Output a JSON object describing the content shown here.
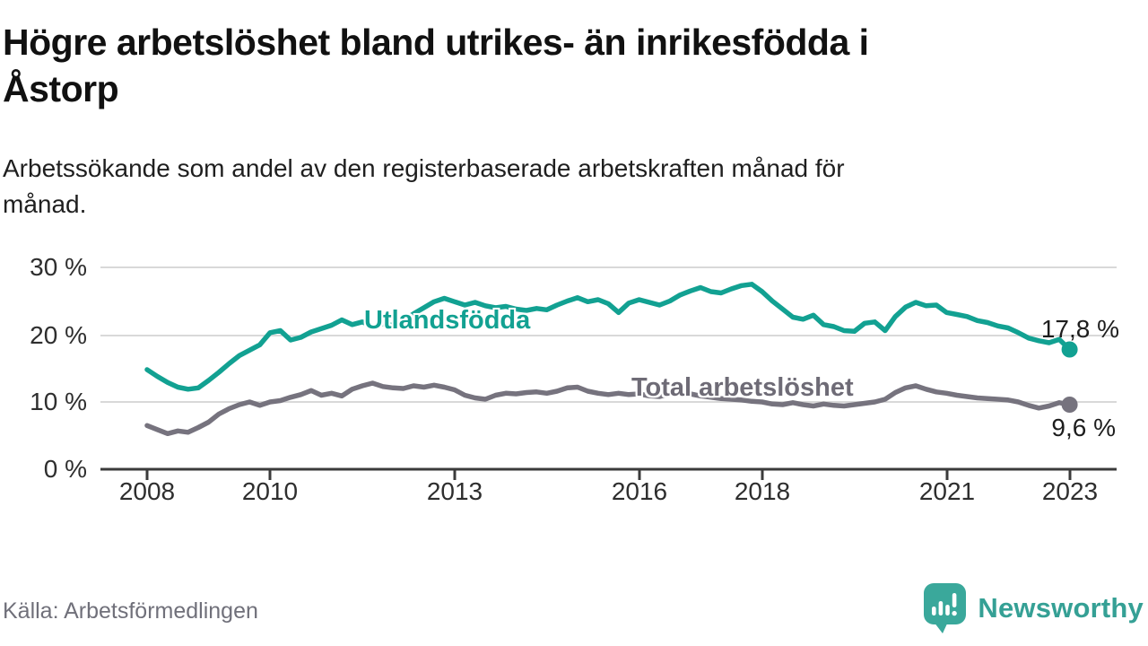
{
  "header": {
    "title": "Högre arbetslöshet bland utrikes- än inrikesfödda i Åstorp",
    "title_lines": [
      "Högre arbetslöshet bland utrikes- än inrikesfödda i",
      "Åstorp"
    ],
    "subtitle": "Arbetssökande som andel av den registerbaserade arbetskraften månad för månad.",
    "subtitle_lines": [
      "Arbetssökande som andel av den registerbaserade arbetskraften månad för",
      "månad."
    ]
  },
  "footer": {
    "source": "Källa: Arbetsförmedlingen",
    "brand": "Newsworthy",
    "brand_icon": "speech-bubble-bar-chart-icon"
  },
  "colors": {
    "series_foreign_born": "#12a192",
    "series_total": "#76737e",
    "gridline": "#d9d9d9",
    "axis": "#3b3b3b",
    "tick_label": "#2e2e2e",
    "end_label": "#1d1d1d",
    "brand_teal": "#35a095",
    "total_label_gray": "#6e6b76"
  },
  "chart_data": {
    "type": "line",
    "unit": "%",
    "grid": true,
    "x_start_year": 2008,
    "x_end_year": 2023,
    "points_per_year": 6,
    "ylim": [
      0,
      32
    ],
    "yticks": [
      30,
      20,
      10,
      0
    ],
    "ytick_labels": [
      "30 %",
      "20 %",
      "10 %",
      "0 %"
    ],
    "xtick_years": [
      2008,
      2010,
      2013,
      2016,
      2018,
      2021,
      2023
    ],
    "xtick_labels": [
      "2008",
      "2010",
      "2013",
      "2016",
      "2018",
      "2021",
      "2023"
    ],
    "series": [
      {
        "name": "total-arbetsloshet",
        "label": "Total arbetslöshet",
        "color": "#76737e",
        "label_color": "#6e6b76",
        "end_label": "9,6 %",
        "last_value_pct": 9.6,
        "values": [
          6.5,
          5.9,
          5.3,
          5.7,
          5.5,
          6.2,
          7.0,
          8.2,
          9.0,
          9.6,
          10.0,
          9.5,
          10.0,
          10.2,
          10.7,
          11.1,
          11.7,
          11.0,
          11.3,
          10.9,
          11.9,
          12.4,
          12.8,
          12.3,
          12.1,
          12.0,
          12.4,
          12.2,
          12.5,
          12.2,
          11.8,
          11.0,
          10.6,
          10.4,
          11.0,
          11.3,
          11.2,
          11.4,
          11.5,
          11.3,
          11.6,
          12.1,
          12.2,
          11.6,
          11.3,
          11.1,
          11.3,
          11.1,
          11.2,
          10.9,
          10.8,
          11.2,
          11.6,
          11.2,
          10.9,
          10.7,
          10.5,
          10.4,
          10.3,
          10.1,
          10.0,
          9.7,
          9.6,
          9.9,
          9.6,
          9.4,
          9.7,
          9.5,
          9.4,
          9.6,
          9.8,
          10.0,
          10.4,
          11.4,
          12.1,
          12.4,
          11.9,
          11.5,
          11.3,
          11.0,
          10.8,
          10.6,
          10.5,
          10.4,
          10.3,
          10.0,
          9.5,
          9.1,
          9.4,
          9.9,
          9.6
        ]
      },
      {
        "name": "utlandsfodda",
        "label": "Utlandsfödda",
        "color": "#12a192",
        "label_color": "#12a192",
        "end_label": "17,8 %",
        "last_value_pct": 17.8,
        "values": [
          14.8,
          13.8,
          12.9,
          12.2,
          11.9,
          12.1,
          13.2,
          14.4,
          15.7,
          16.9,
          17.7,
          18.5,
          20.3,
          20.6,
          19.2,
          19.6,
          20.4,
          20.9,
          21.4,
          22.2,
          21.5,
          21.9,
          21.2,
          21.6,
          21.4,
          22.1,
          23.1,
          24.0,
          24.9,
          25.4,
          24.9,
          24.4,
          24.8,
          24.3,
          24.0,
          24.2,
          23.8,
          23.6,
          23.9,
          23.7,
          24.4,
          25.0,
          25.5,
          24.9,
          25.2,
          24.6,
          23.3,
          24.7,
          25.2,
          24.8,
          24.4,
          25.0,
          25.9,
          26.5,
          27.0,
          26.4,
          26.2,
          26.8,
          27.3,
          27.5,
          26.4,
          25.0,
          23.8,
          22.6,
          22.3,
          22.9,
          21.5,
          21.2,
          20.6,
          20.5,
          21.7,
          21.9,
          20.6,
          22.7,
          24.1,
          24.8,
          24.3,
          24.4,
          23.3,
          23.0,
          22.7,
          22.1,
          21.8,
          21.3,
          21.0,
          20.3,
          19.5,
          19.1,
          18.8,
          19.3,
          17.8
        ]
      }
    ]
  }
}
